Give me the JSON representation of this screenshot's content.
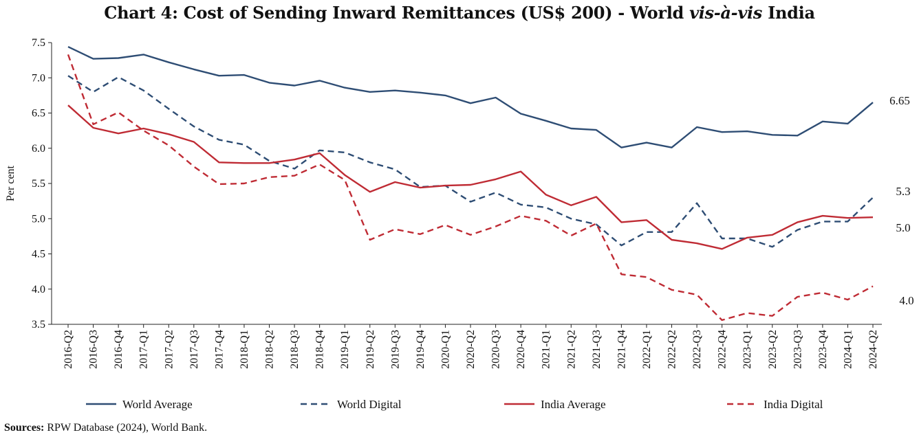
{
  "chart_data": {
    "type": "line",
    "title_prefix": "Chart 4: Cost of Sending Inward Remittances (US$ 200) - World ",
    "title_italic": "vis-à-vis",
    "title_suffix": " India",
    "xlabel": "",
    "ylabel": "Per cent",
    "ylim": [
      3.5,
      7.5
    ],
    "yticks": [
      "7.5",
      "7.0",
      "6.5",
      "6.0",
      "5.5",
      "5.0",
      "4.5",
      "4.0",
      "3.5"
    ],
    "grid": false,
    "legend_position": "bottom",
    "categories": [
      "2016-Q2",
      "2016-Q3",
      "2016-Q4",
      "2017-Q1",
      "2017-Q2",
      "2017-Q3",
      "2017-Q4",
      "2018-Q1",
      "2018-Q2",
      "2018-Q3",
      "2018-Q4",
      "2019-Q1",
      "2019-Q2",
      "2019-Q3",
      "2019-Q4",
      "2020-Q1",
      "2020-Q2",
      "2020-Q3",
      "2020-Q4",
      "2021-Q1",
      "2021-Q2",
      "2021-Q3",
      "2021-Q4",
      "2022-Q1",
      "2022-Q2",
      "2022-Q3",
      "2022-Q4",
      "2023-Q1",
      "2023-Q2",
      "2023-Q3",
      "2023-Q4",
      "2024-Q1",
      "2024-Q2"
    ],
    "series": [
      {
        "name": "World  Average",
        "color": "#2e4d74",
        "dash": "solid",
        "values": [
          7.44,
          7.27,
          7.28,
          7.33,
          7.22,
          7.12,
          7.03,
          7.04,
          6.93,
          6.89,
          6.96,
          6.86,
          6.8,
          6.82,
          6.79,
          6.75,
          6.64,
          6.72,
          6.49,
          6.39,
          6.28,
          6.26,
          6.01,
          6.08,
          6.01,
          6.3,
          6.23,
          6.24,
          6.19,
          6.18,
          6.38,
          6.35,
          6.65
        ],
        "end_label": "6.65"
      },
      {
        "name": "World  Digital",
        "color": "#2e4d74",
        "dash": "dashed",
        "values": [
          7.03,
          6.8,
          7.01,
          6.82,
          6.56,
          6.31,
          6.12,
          6.05,
          5.82,
          5.71,
          5.97,
          5.94,
          5.8,
          5.7,
          5.45,
          5.47,
          5.24,
          5.37,
          5.2,
          5.16,
          5.0,
          4.92,
          4.62,
          4.81,
          4.81,
          5.22,
          4.72,
          4.72,
          4.6,
          4.84,
          4.96,
          4.96,
          5.3
        ],
        "end_label": "5.3"
      },
      {
        "name": "India Average",
        "color": "#bf2b34",
        "dash": "solid",
        "values": [
          6.61,
          6.29,
          6.21,
          6.28,
          6.2,
          6.09,
          5.8,
          5.79,
          5.79,
          5.84,
          5.93,
          5.62,
          5.38,
          5.52,
          5.44,
          5.47,
          5.48,
          5.56,
          5.67,
          5.34,
          5.19,
          5.31,
          4.95,
          4.98,
          4.7,
          4.65,
          4.57,
          4.73,
          4.77,
          4.95,
          5.04,
          5.01,
          5.02
        ],
        "end_label": "5.0"
      },
      {
        "name": "India Digital",
        "color": "#bf2b34",
        "dash": "dashed",
        "values": [
          7.33,
          6.34,
          6.51,
          6.25,
          6.04,
          5.74,
          5.49,
          5.5,
          5.59,
          5.61,
          5.77,
          5.55,
          4.7,
          4.85,
          4.78,
          4.91,
          4.77,
          4.89,
          5.04,
          4.97,
          4.76,
          4.93,
          4.21,
          4.17,
          3.99,
          3.92,
          3.56,
          3.66,
          3.62,
          3.89,
          3.95,
          3.85,
          4.04
        ],
        "end_label": "4.0"
      }
    ]
  },
  "sources": {
    "label": "Sources:",
    "text": " RPW Database (2024), World Bank."
  }
}
